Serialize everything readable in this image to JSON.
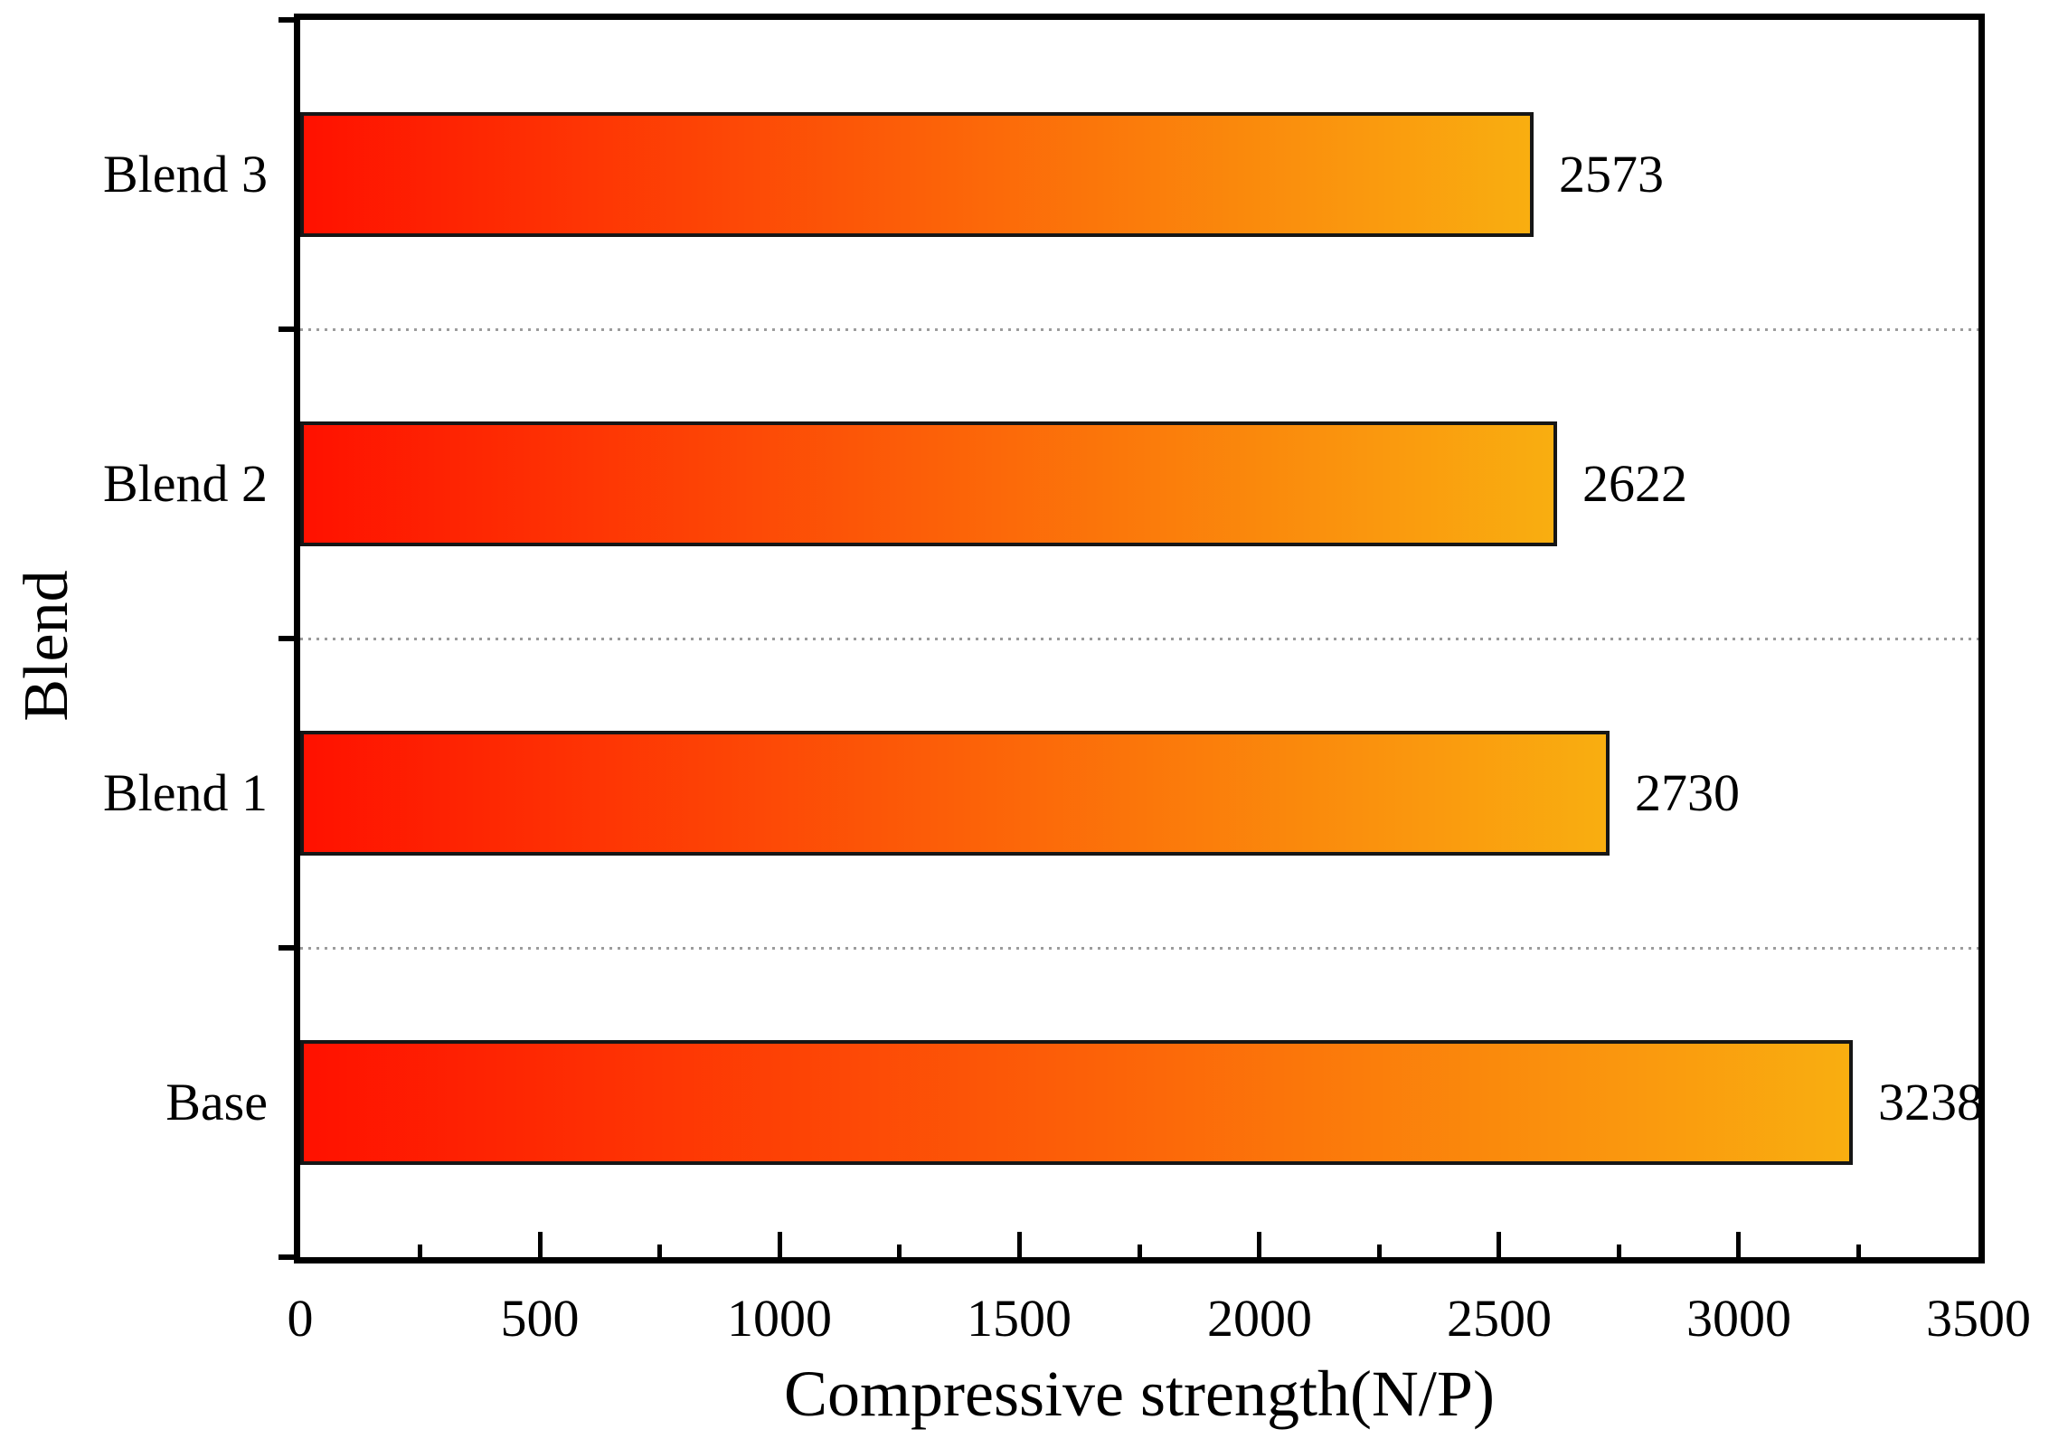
{
  "chart_data": {
    "type": "bar",
    "orientation": "horizontal",
    "title": "",
    "xlabel": "Compressive strength(N/P)",
    "ylabel": "Blend",
    "categories": [
      "Base",
      "Blend 1",
      "Blend 2",
      "Blend 3"
    ],
    "values": [
      3238,
      2730,
      2622,
      2573
    ],
    "data_labels": [
      "3238",
      "2730",
      "2622",
      "2573"
    ],
    "display_order_top_to_bottom": [
      "Blend 3",
      "Blend 2",
      "Blend 1",
      "Base"
    ],
    "xlim": [
      0,
      3500
    ],
    "x_major_ticks": [
      0,
      500,
      1000,
      1500,
      2000,
      2500,
      3000,
      3500
    ],
    "x_tick_labels": [
      "0",
      "500",
      "1000",
      "1500",
      "2000",
      "2500",
      "3000",
      "3500"
    ],
    "x_minor_tick_step": 250,
    "grid": "dotted horizontal lines at category boundaries",
    "legend": "none",
    "colors": {
      "bar_gradient_start": "#ff1100",
      "bar_gradient_end": "#f9ae10",
      "bar_border": "#161616",
      "frame": "#000000",
      "gridline": "#9c9c9c",
      "text": "#000000",
      "background": "#ffffff"
    }
  }
}
